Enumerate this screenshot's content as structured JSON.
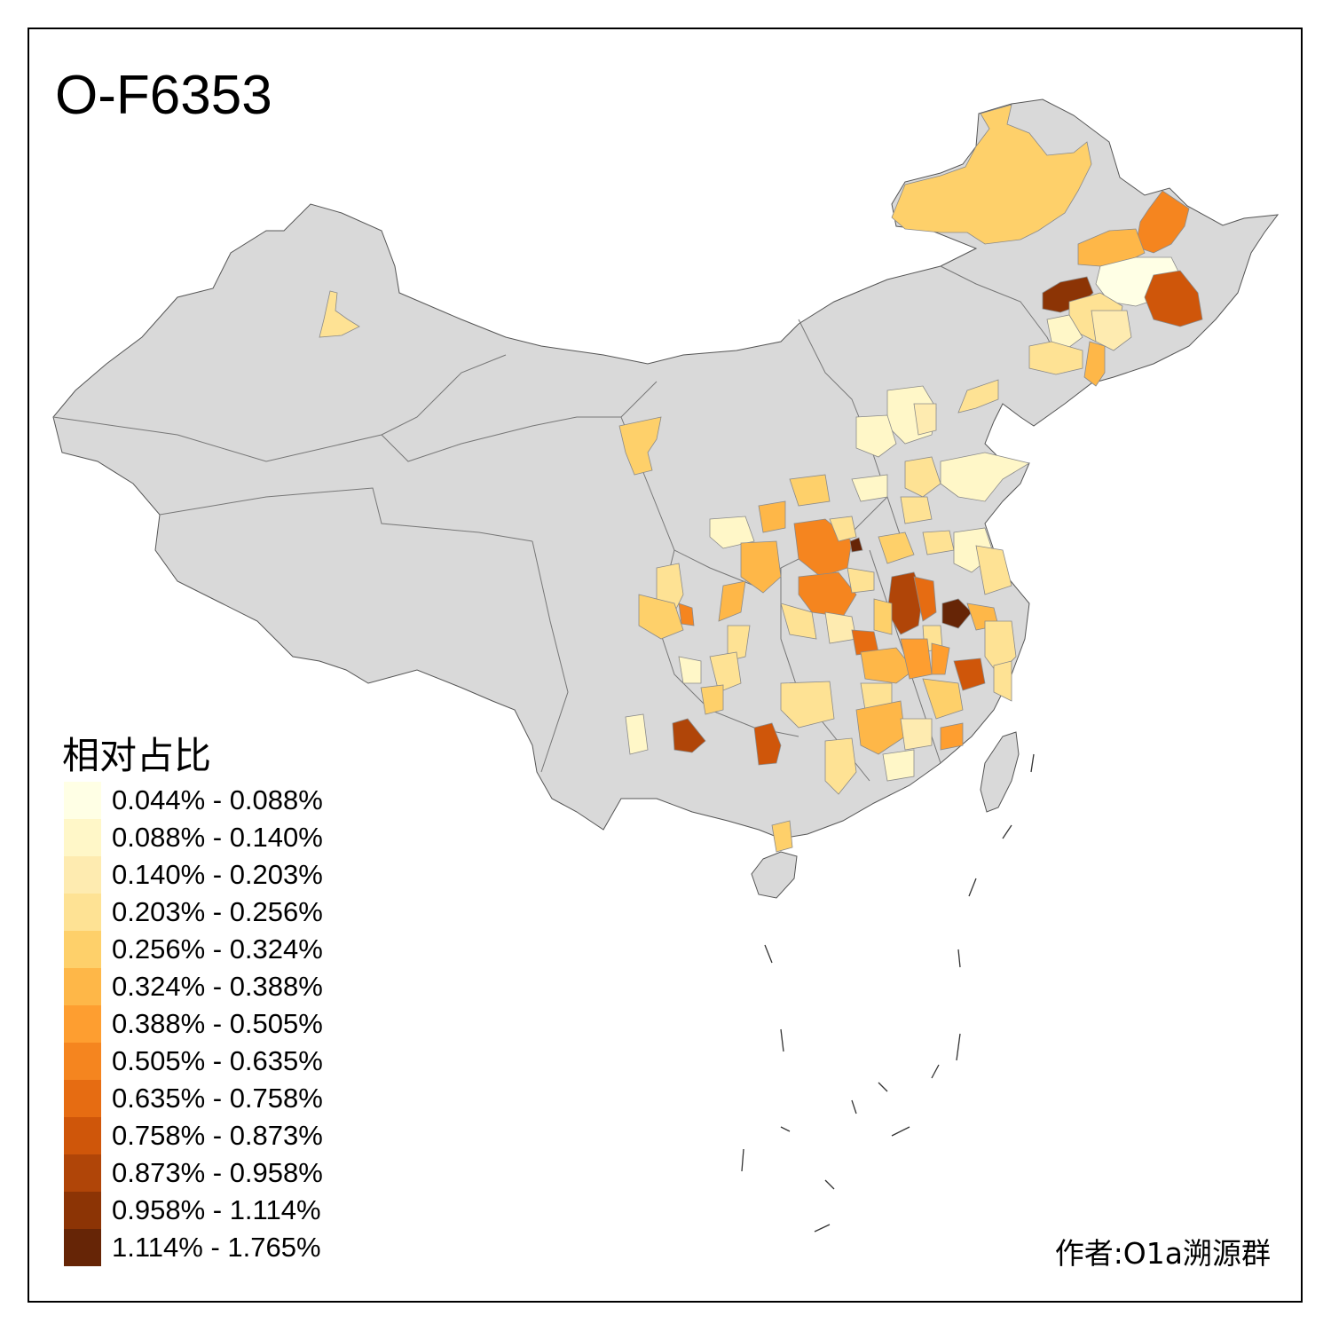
{
  "title": "O-F6353",
  "legend": {
    "title": "相对占比",
    "items": [
      {
        "label": "0.044% - 0.088%",
        "color": "#ffffe5"
      },
      {
        "label": "0.088% - 0.140%",
        "color": "#fff7c8"
      },
      {
        "label": "0.140% - 0.203%",
        "color": "#feebb0"
      },
      {
        "label": "0.203% - 0.256%",
        "color": "#fee294"
      },
      {
        "label": "0.256% - 0.324%",
        "color": "#fed06a"
      },
      {
        "label": "0.324% - 0.388%",
        "color": "#feb748"
      },
      {
        "label": "0.388% - 0.505%",
        "color": "#fe9e30"
      },
      {
        "label": "0.505% - 0.635%",
        "color": "#f5851f"
      },
      {
        "label": "0.635% - 0.758%",
        "color": "#e66c12"
      },
      {
        "label": "0.758% - 0.873%",
        "color": "#cf560a"
      },
      {
        "label": "0.873% - 0.958%",
        "color": "#b04508"
      },
      {
        "label": "0.958% - 1.114%",
        "color": "#8c3405"
      },
      {
        "label": "1.114% - 1.765%",
        "color": "#662506"
      }
    ]
  },
  "author": "作者:O1a溯源群",
  "colors": {
    "base_land": "#d9d9d9",
    "border": "#6e6e6e",
    "sea": "#ffffff"
  }
}
